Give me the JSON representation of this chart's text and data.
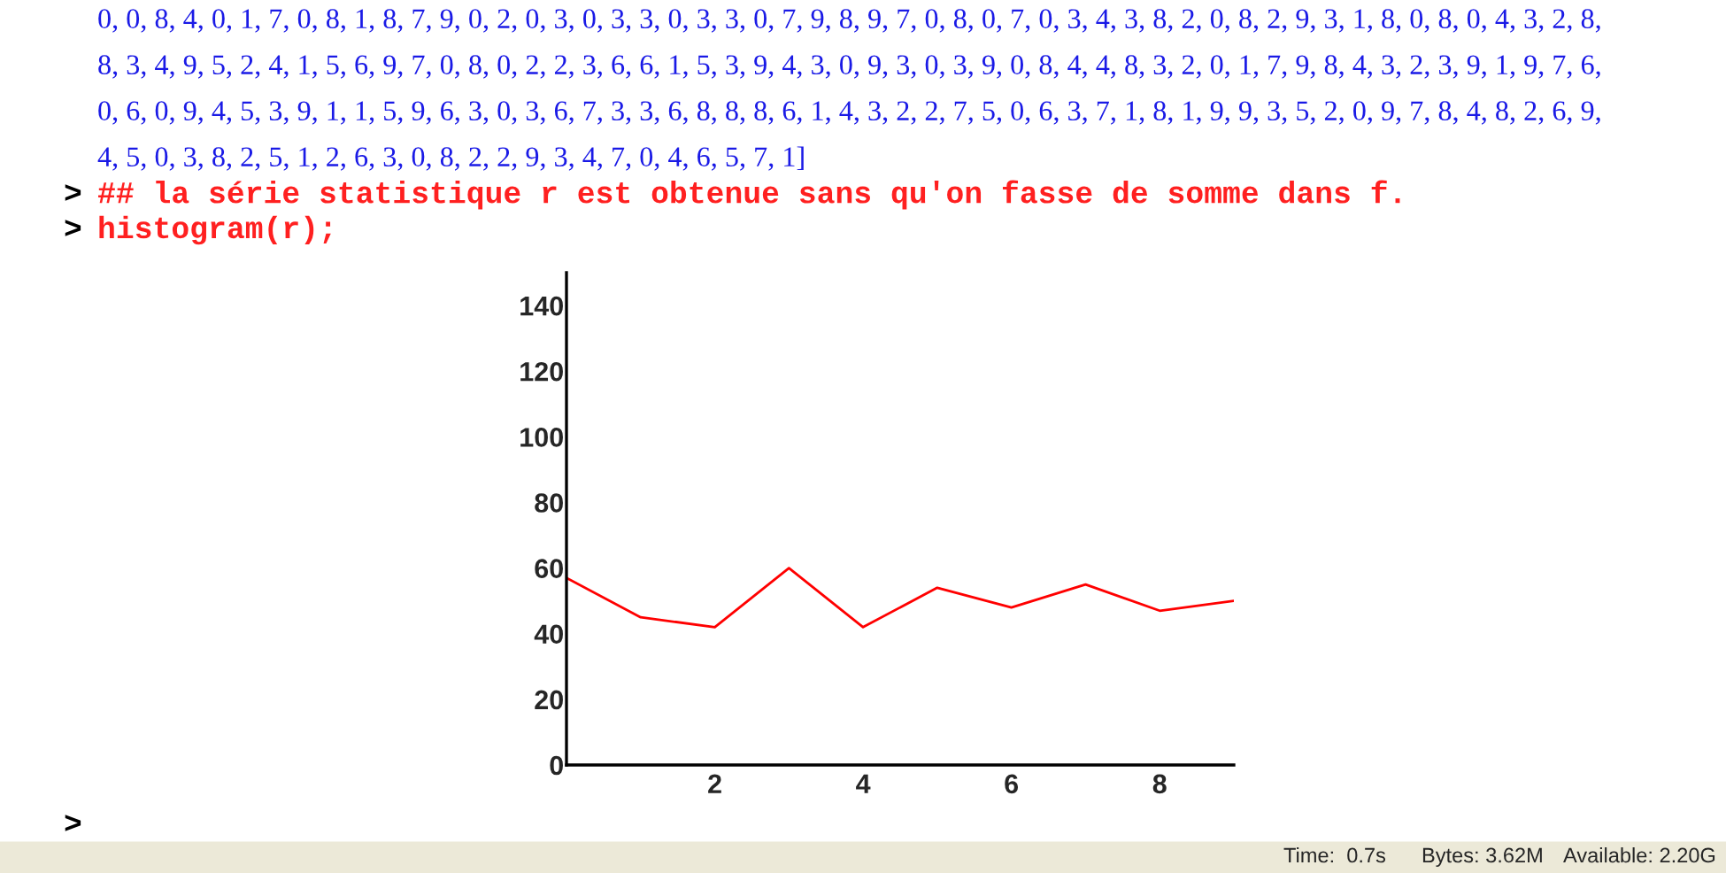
{
  "chart_data": {
    "type": "line",
    "x": [
      0,
      1,
      2,
      3,
      4,
      5,
      6,
      7,
      8,
      9
    ],
    "series": [
      {
        "color": "#ff0000",
        "values": [
          57,
          45,
          42,
          60,
          42,
          54,
          48,
          55,
          47,
          50
        ]
      }
    ],
    "xlim": [
      0,
      9
    ],
    "ylim": [
      0,
      150
    ],
    "xticks": [
      2,
      4,
      6,
      8
    ],
    "yticks": [
      0,
      20,
      40,
      60,
      80,
      100,
      120,
      140
    ],
    "grid": false,
    "annotations": [
      "0, 0, 8, 4, 0, 1, 7, 0, 8, 1, 8, 7, 9, 0, 2, 0, 3, 0, 3, 3, 0, 3, 3, 0, 7, 9, 8, 9, 7, 0, 8, 0, 7, 0, 3, 4, 3, 8, 2, 0, 8, 2, 9, 3, 1, 8, 0, 8, 0, 4, 3, 2, 8,",
      "8, 3, 4, 9, 5, 2, 4, 1, 5, 6, 9, 7, 0, 8, 0, 2, 2, 3, 6, 6, 1, 5, 3, 9, 4, 3, 0, 9, 3, 0, 3, 9, 0, 8, 4, 4, 8, 3, 2, 0, 1, 7, 9, 8, 4, 3, 2, 3, 9, 1, 9, 7, 6,",
      "0, 6, 0, 9, 4, 5, 3, 9, 1, 1, 5, 9, 6, 3, 0, 3, 6, 7, 3, 3, 6, 8, 8, 8, 6, 1, 4, 3, 2, 2, 7, 5, 0, 6, 3, 7, 1, 8, 1, 9, 9, 3, 5, 2, 0, 9, 7, 8, 4, 8, 2, 6, 9,",
      "4, 5, 0, 3, 8, 2, 5, 1, 2, 6, 3, 0, 8, 2, 2, 9, 3, 4, 7, 0, 4, 6, 5, 7, 1]",
      ">",
      "## la série statistique r est obtenue sans qu'on fasse de somme dans f.",
      ">",
      "histogram(r);",
      ">",
      "Time:  0.7s",
      "Bytes: 3.62M",
      "Available: 2.20G"
    ]
  }
}
